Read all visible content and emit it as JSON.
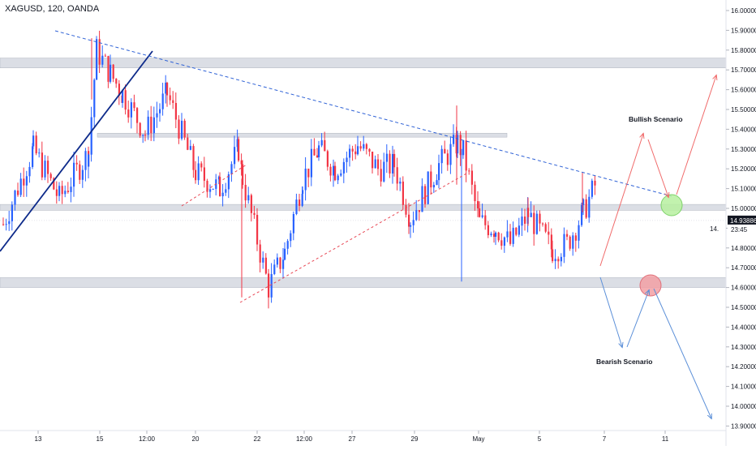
{
  "header": {
    "symbol_label": "XAGUSD, 120, OANDA"
  },
  "chart_data": {
    "type": "candlestick",
    "price_axis": {
      "ticks": [
        "16.00000",
        "15.90000",
        "15.80000",
        "15.70000",
        "15.60000",
        "15.50000",
        "15.40000",
        "15.30000",
        "15.20000",
        "15.10000",
        "15.00000",
        "14.90000",
        "14.80000",
        "14.70000",
        "14.60000",
        "14.50000",
        "14.40000",
        "14.30000",
        "14.20000",
        "14.10000",
        "14.00000",
        "13.90000"
      ],
      "range": [
        13.88,
        16.04
      ]
    },
    "time_axis": {
      "ticks": [
        "13",
        "15",
        "12:00",
        "20",
        "22",
        "12:00",
        "27",
        "29",
        "May",
        "5",
        "7",
        "11"
      ]
    },
    "current_price": {
      "label": "14.93886",
      "countdown": "23:45",
      "value": 14.93886,
      "partial_label": "14."
    },
    "annotations": {
      "bullish": "Bullish Scenario",
      "bearish": "Bearish Scenario"
    },
    "colors": {
      "up": "#2962ff",
      "down": "#f23645",
      "zone": "#cfd3dc",
      "green_marker": "#b7f0a0",
      "red_marker": "#f2a0a4",
      "trend_solid": "#0d2a8a",
      "trend_dashed_blue": "#2f62d6",
      "trend_dashed_red": "#e84855",
      "bull_arrow": "#f06a6a",
      "bear_arrow": "#5b8fd8",
      "price_tag": "#131722"
    },
    "zones": [
      {
        "low": 15.71,
        "high": 15.76
      },
      {
        "low": 15.36,
        "high": 15.38
      },
      {
        "low": 14.99,
        "high": 15.02
      },
      {
        "low": 14.6,
        "high": 14.65
      }
    ],
    "candle_segments": [
      [
        3,
        14.92,
        15.3
      ],
      [
        40,
        15.3,
        15.05
      ],
      [
        72,
        15.05,
        15.28
      ],
      [
        108,
        15.28,
        15.8
      ],
      [
        118,
        15.8,
        15.68
      ],
      [
        135,
        15.68,
        15.58
      ],
      [
        150,
        15.58,
        15.38
      ],
      [
        178,
        15.38,
        15.58
      ],
      [
        205,
        15.58,
        15.18
      ],
      [
        240,
        15.18,
        15.1
      ],
      [
        270,
        15.1,
        15.3
      ],
      [
        293,
        15.3,
        15.15
      ],
      [
        298,
        15.15,
        14.6
      ],
      [
        330,
        14.6,
        14.78
      ],
      [
        350,
        14.78,
        15.15
      ],
      [
        372,
        15.15,
        15.3
      ],
      [
        392,
        15.3,
        15.2
      ],
      [
        412,
        15.2,
        15.32
      ],
      [
        440,
        15.32,
        15.2
      ],
      [
        465,
        15.2,
        15.22
      ],
      [
        485,
        15.22,
        14.95
      ],
      [
        505,
        14.95,
        15.22
      ],
      [
        540,
        15.22,
        15.33
      ],
      [
        563,
        15.33,
        15.28
      ],
      [
        570,
        15.28,
        14.93
      ],
      [
        590,
        14.93,
        14.9
      ],
      [
        610,
        14.9,
        14.82
      ],
      [
        628,
        14.82,
        14.97
      ],
      [
        650,
        14.97,
        14.79
      ],
      [
        680,
        14.79,
        14.82
      ],
      [
        698,
        14.82,
        14.98
      ],
      [
        718,
        14.98,
        15.12
      ],
      [
        733,
        15.12,
        14.93
      ]
    ]
  }
}
